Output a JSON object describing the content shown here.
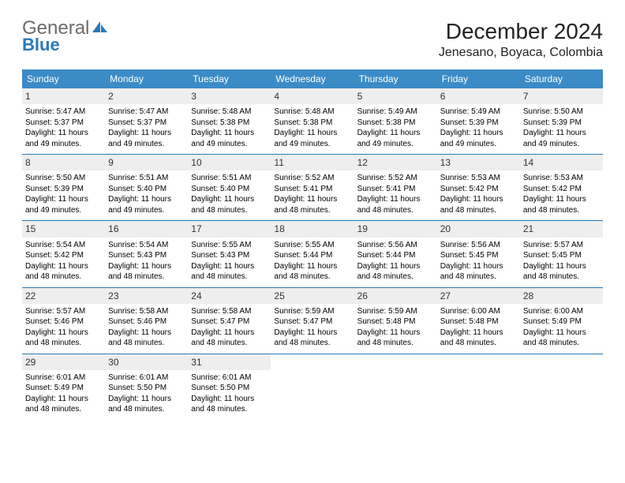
{
  "logo": {
    "line1": "General",
    "line2": "Blue",
    "icon_color": "#2a7ab8",
    "text_gray": "#6b6b6b"
  },
  "header": {
    "month_title": "December 2024",
    "location": "Jenesano, Boyaca, Colombia"
  },
  "styling": {
    "header_bg": "#3b8bc6",
    "header_fg": "#ffffff",
    "daynum_bg": "#eeeeee",
    "cell_border": "#2a7ab8",
    "body_bg": "#ffffff",
    "text_color": "#000000",
    "header_font_size": 12,
    "cell_font_size": 10,
    "title_font_size": 28,
    "location_font_size": 16,
    "column_count": 7
  },
  "day_labels": [
    "Sunday",
    "Monday",
    "Tuesday",
    "Wednesday",
    "Thursday",
    "Friday",
    "Saturday"
  ],
  "weeks": [
    [
      {
        "n": "1",
        "sr": "Sunrise: 5:47 AM",
        "ss": "Sunset: 5:37 PM",
        "d1": "Daylight: 11 hours",
        "d2": "and 49 minutes."
      },
      {
        "n": "2",
        "sr": "Sunrise: 5:47 AM",
        "ss": "Sunset: 5:37 PM",
        "d1": "Daylight: 11 hours",
        "d2": "and 49 minutes."
      },
      {
        "n": "3",
        "sr": "Sunrise: 5:48 AM",
        "ss": "Sunset: 5:38 PM",
        "d1": "Daylight: 11 hours",
        "d2": "and 49 minutes."
      },
      {
        "n": "4",
        "sr": "Sunrise: 5:48 AM",
        "ss": "Sunset: 5:38 PM",
        "d1": "Daylight: 11 hours",
        "d2": "and 49 minutes."
      },
      {
        "n": "5",
        "sr": "Sunrise: 5:49 AM",
        "ss": "Sunset: 5:38 PM",
        "d1": "Daylight: 11 hours",
        "d2": "and 49 minutes."
      },
      {
        "n": "6",
        "sr": "Sunrise: 5:49 AM",
        "ss": "Sunset: 5:39 PM",
        "d1": "Daylight: 11 hours",
        "d2": "and 49 minutes."
      },
      {
        "n": "7",
        "sr": "Sunrise: 5:50 AM",
        "ss": "Sunset: 5:39 PM",
        "d1": "Daylight: 11 hours",
        "d2": "and 49 minutes."
      }
    ],
    [
      {
        "n": "8",
        "sr": "Sunrise: 5:50 AM",
        "ss": "Sunset: 5:39 PM",
        "d1": "Daylight: 11 hours",
        "d2": "and 49 minutes."
      },
      {
        "n": "9",
        "sr": "Sunrise: 5:51 AM",
        "ss": "Sunset: 5:40 PM",
        "d1": "Daylight: 11 hours",
        "d2": "and 49 minutes."
      },
      {
        "n": "10",
        "sr": "Sunrise: 5:51 AM",
        "ss": "Sunset: 5:40 PM",
        "d1": "Daylight: 11 hours",
        "d2": "and 48 minutes."
      },
      {
        "n": "11",
        "sr": "Sunrise: 5:52 AM",
        "ss": "Sunset: 5:41 PM",
        "d1": "Daylight: 11 hours",
        "d2": "and 48 minutes."
      },
      {
        "n": "12",
        "sr": "Sunrise: 5:52 AM",
        "ss": "Sunset: 5:41 PM",
        "d1": "Daylight: 11 hours",
        "d2": "and 48 minutes."
      },
      {
        "n": "13",
        "sr": "Sunrise: 5:53 AM",
        "ss": "Sunset: 5:42 PM",
        "d1": "Daylight: 11 hours",
        "d2": "and 48 minutes."
      },
      {
        "n": "14",
        "sr": "Sunrise: 5:53 AM",
        "ss": "Sunset: 5:42 PM",
        "d1": "Daylight: 11 hours",
        "d2": "and 48 minutes."
      }
    ],
    [
      {
        "n": "15",
        "sr": "Sunrise: 5:54 AM",
        "ss": "Sunset: 5:42 PM",
        "d1": "Daylight: 11 hours",
        "d2": "and 48 minutes."
      },
      {
        "n": "16",
        "sr": "Sunrise: 5:54 AM",
        "ss": "Sunset: 5:43 PM",
        "d1": "Daylight: 11 hours",
        "d2": "and 48 minutes."
      },
      {
        "n": "17",
        "sr": "Sunrise: 5:55 AM",
        "ss": "Sunset: 5:43 PM",
        "d1": "Daylight: 11 hours",
        "d2": "and 48 minutes."
      },
      {
        "n": "18",
        "sr": "Sunrise: 5:55 AM",
        "ss": "Sunset: 5:44 PM",
        "d1": "Daylight: 11 hours",
        "d2": "and 48 minutes."
      },
      {
        "n": "19",
        "sr": "Sunrise: 5:56 AM",
        "ss": "Sunset: 5:44 PM",
        "d1": "Daylight: 11 hours",
        "d2": "and 48 minutes."
      },
      {
        "n": "20",
        "sr": "Sunrise: 5:56 AM",
        "ss": "Sunset: 5:45 PM",
        "d1": "Daylight: 11 hours",
        "d2": "and 48 minutes."
      },
      {
        "n": "21",
        "sr": "Sunrise: 5:57 AM",
        "ss": "Sunset: 5:45 PM",
        "d1": "Daylight: 11 hours",
        "d2": "and 48 minutes."
      }
    ],
    [
      {
        "n": "22",
        "sr": "Sunrise: 5:57 AM",
        "ss": "Sunset: 5:46 PM",
        "d1": "Daylight: 11 hours",
        "d2": "and 48 minutes."
      },
      {
        "n": "23",
        "sr": "Sunrise: 5:58 AM",
        "ss": "Sunset: 5:46 PM",
        "d1": "Daylight: 11 hours",
        "d2": "and 48 minutes."
      },
      {
        "n": "24",
        "sr": "Sunrise: 5:58 AM",
        "ss": "Sunset: 5:47 PM",
        "d1": "Daylight: 11 hours",
        "d2": "and 48 minutes."
      },
      {
        "n": "25",
        "sr": "Sunrise: 5:59 AM",
        "ss": "Sunset: 5:47 PM",
        "d1": "Daylight: 11 hours",
        "d2": "and 48 minutes."
      },
      {
        "n": "26",
        "sr": "Sunrise: 5:59 AM",
        "ss": "Sunset: 5:48 PM",
        "d1": "Daylight: 11 hours",
        "d2": "and 48 minutes."
      },
      {
        "n": "27",
        "sr": "Sunrise: 6:00 AM",
        "ss": "Sunset: 5:48 PM",
        "d1": "Daylight: 11 hours",
        "d2": "and 48 minutes."
      },
      {
        "n": "28",
        "sr": "Sunrise: 6:00 AM",
        "ss": "Sunset: 5:49 PM",
        "d1": "Daylight: 11 hours",
        "d2": "and 48 minutes."
      }
    ],
    [
      {
        "n": "29",
        "sr": "Sunrise: 6:01 AM",
        "ss": "Sunset: 5:49 PM",
        "d1": "Daylight: 11 hours",
        "d2": "and 48 minutes."
      },
      {
        "n": "30",
        "sr": "Sunrise: 6:01 AM",
        "ss": "Sunset: 5:50 PM",
        "d1": "Daylight: 11 hours",
        "d2": "and 48 minutes."
      },
      {
        "n": "31",
        "sr": "Sunrise: 6:01 AM",
        "ss": "Sunset: 5:50 PM",
        "d1": "Daylight: 11 hours",
        "d2": "and 48 minutes."
      },
      {
        "n": "",
        "sr": "",
        "ss": "",
        "d1": "",
        "d2": "",
        "empty": true
      },
      {
        "n": "",
        "sr": "",
        "ss": "",
        "d1": "",
        "d2": "",
        "empty": true
      },
      {
        "n": "",
        "sr": "",
        "ss": "",
        "d1": "",
        "d2": "",
        "empty": true
      },
      {
        "n": "",
        "sr": "",
        "ss": "",
        "d1": "",
        "d2": "",
        "empty": true
      }
    ]
  ]
}
